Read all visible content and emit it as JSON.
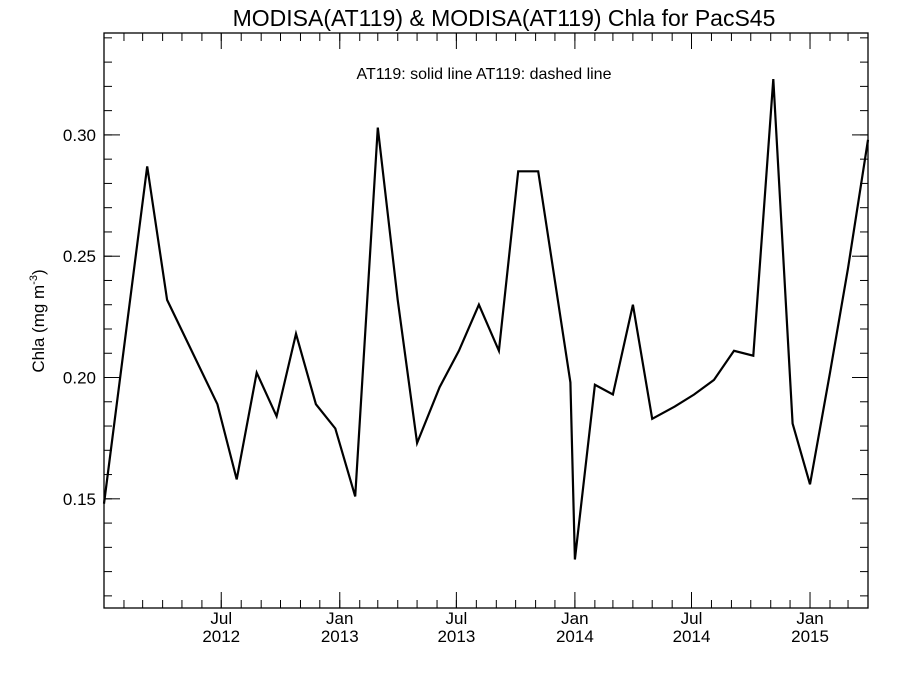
{
  "chart_data": {
    "type": "line",
    "title": "MODISA(AT119) & MODISA(AT119)  Chla for PacS45",
    "legend_text": "AT119: solid line   AT119: dashed line",
    "ylabel_main": "Chla (mg m",
    "ylabel_sup": "-3",
    "ylabel_end": ")",
    "ylim": [
      0.105,
      0.342
    ],
    "y_ticks": [
      {
        "value": 0.15,
        "label": "0.15"
      },
      {
        "value": 0.2,
        "label": "0.20"
      },
      {
        "value": 0.25,
        "label": "0.25"
      },
      {
        "value": 0.3,
        "label": "0.30"
      }
    ],
    "y_minor_step": 0.01,
    "xlim": [
      "2012-01-01",
      "2015-04-01"
    ],
    "x_ticks": [
      {
        "date": "2012-07-01",
        "month": "Jul",
        "year": "2012"
      },
      {
        "date": "2013-01-01",
        "month": "Jan",
        "year": "2013"
      },
      {
        "date": "2013-07-01",
        "month": "Jul",
        "year": "2013"
      },
      {
        "date": "2014-01-01",
        "month": "Jan",
        "year": "2014"
      },
      {
        "date": "2014-07-01",
        "month": "Jul",
        "year": "2014"
      },
      {
        "date": "2015-01-01",
        "month": "Jan",
        "year": "2015"
      }
    ],
    "x_minor_step_months": 1,
    "grid": false,
    "series": [
      {
        "style": "solid",
        "color": "#000000",
        "x": [
          "2012-01-01",
          "2012-03-08",
          "2012-04-08",
          "2012-06-25",
          "2012-07-25",
          "2012-08-25",
          "2012-09-25",
          "2012-10-25",
          "2012-11-25",
          "2012-12-25",
          "2013-01-25",
          "2013-03-01",
          "2013-04-01",
          "2013-05-01",
          "2013-06-05",
          "2013-07-05",
          "2013-08-05",
          "2013-09-05",
          "2013-10-05",
          "2013-11-05",
          "2013-12-25",
          "2014-01-01",
          "2014-02-01",
          "2014-03-01",
          "2014-04-01",
          "2014-05-01",
          "2014-06-05",
          "2014-07-05",
          "2014-08-05",
          "2014-09-05",
          "2014-10-05",
          "2014-11-05",
          "2014-12-05",
          "2015-01-01",
          "2015-02-01",
          "2015-03-01",
          "2015-04-01"
        ],
        "y": [
          0.148,
          0.287,
          0.232,
          0.189,
          0.158,
          0.202,
          0.184,
          0.218,
          0.189,
          0.179,
          0.151,
          0.303,
          0.232,
          0.173,
          0.196,
          0.211,
          0.23,
          0.211,
          0.285,
          0.285,
          0.198,
          0.125,
          0.197,
          0.193,
          0.23,
          0.183,
          0.188,
          0.193,
          0.199,
          0.211,
          0.209,
          0.323,
          0.181,
          0.156,
          0.202,
          0.245,
          0.298
        ]
      }
    ]
  }
}
